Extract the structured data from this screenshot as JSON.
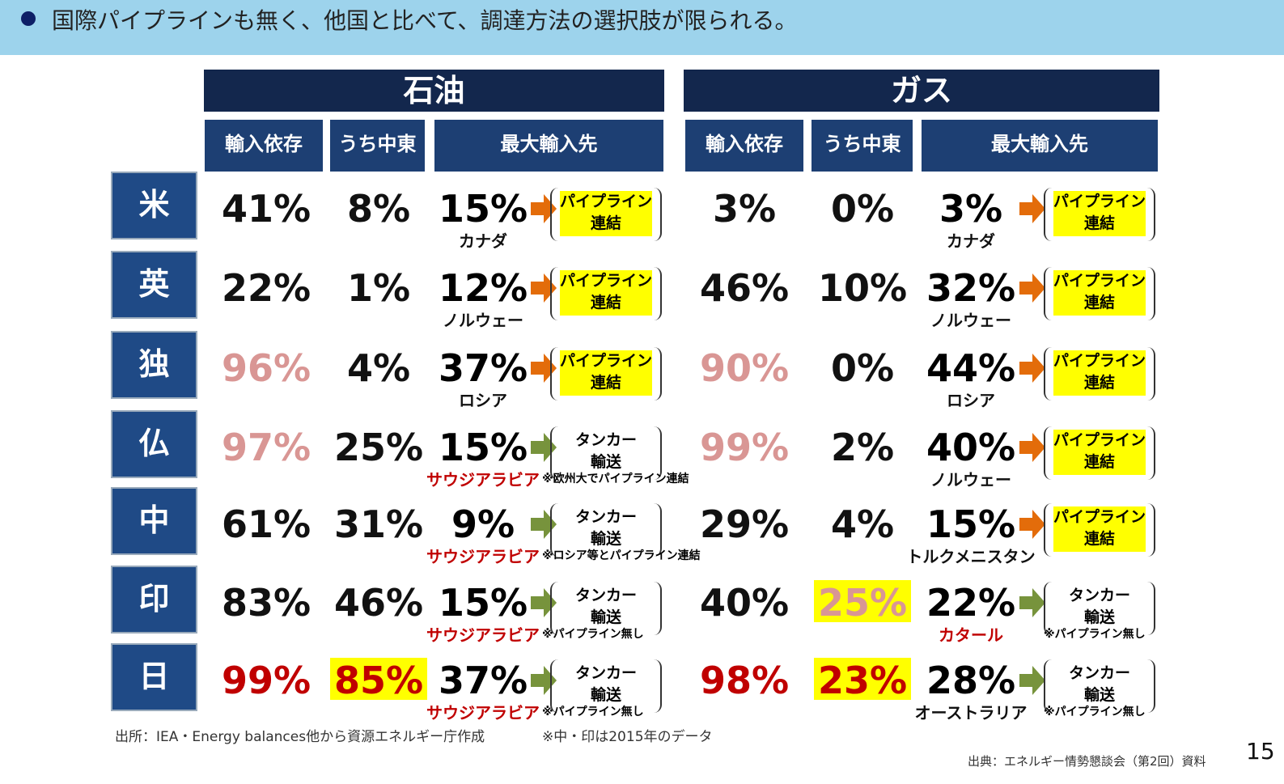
{
  "banner": {
    "text": "国際パイプラインも無く、他国と比べて、調達方法の選択肢が限られる。"
  },
  "headers": {
    "oil": "石油",
    "gas": "ガス",
    "dependence": "輸入依存",
    "middle_east": "うち中東",
    "max_source": "最大輸入先"
  },
  "route_labels": {
    "pipeline": [
      "パイプライン",
      "連結"
    ],
    "tanker": [
      "タンカー",
      "輸送"
    ]
  },
  "colors": {
    "red": "#c00000",
    "pink": "#d99694",
    "black": "#111111",
    "highlight": "#ffff00",
    "pipeline_arrow": "#e36c0a",
    "tanker_arrow": "#77933c"
  },
  "rows": [
    {
      "country": "米",
      "oil": {
        "dep": "41%",
        "dep_color": "black",
        "me": "8%",
        "max": "15%",
        "src": "カナダ",
        "src_color": "black",
        "route": "pipeline"
      },
      "gas": {
        "dep": "3%",
        "dep_color": "black",
        "me": "0%",
        "max": "3%",
        "src": "カナダ",
        "src_color": "black",
        "route": "pipeline"
      }
    },
    {
      "country": "英",
      "oil": {
        "dep": "22%",
        "dep_color": "black",
        "me": "1%",
        "max": "12%",
        "src": "ノルウェー",
        "src_color": "black",
        "route": "pipeline"
      },
      "gas": {
        "dep": "46%",
        "dep_color": "black",
        "me": "10%",
        "max": "32%",
        "src": "ノルウェー",
        "src_color": "black",
        "route": "pipeline"
      }
    },
    {
      "country": "独",
      "oil": {
        "dep": "96%",
        "dep_color": "pink",
        "me": "4%",
        "max": "37%",
        "src": "ロシア",
        "src_color": "black",
        "route": "pipeline"
      },
      "gas": {
        "dep": "90%",
        "dep_color": "pink",
        "me": "0%",
        "max": "44%",
        "src": "ロシア",
        "src_color": "black",
        "route": "pipeline"
      }
    },
    {
      "country": "仏",
      "oil": {
        "dep": "97%",
        "dep_color": "pink",
        "me": "25%",
        "max": "15%",
        "src": "サウジアラビア",
        "src_color": "red",
        "route": "tanker",
        "note": "※欧州大でパイプライン連結"
      },
      "gas": {
        "dep": "99%",
        "dep_color": "pink",
        "me": "2%",
        "max": "40%",
        "src": "ノルウェー",
        "src_color": "black",
        "route": "pipeline"
      }
    },
    {
      "country": "中",
      "oil": {
        "dep": "61%",
        "dep_color": "black",
        "me": "31%",
        "max": "9%",
        "src": "サウジアラビア",
        "src_color": "red",
        "route": "tanker",
        "note": "※ロシア等とパイプライン連結"
      },
      "gas": {
        "dep": "29%",
        "dep_color": "black",
        "me": "4%",
        "max": "15%",
        "src": "トルクメニスタン",
        "src_color": "black",
        "route": "pipeline"
      }
    },
    {
      "country": "印",
      "oil": {
        "dep": "83%",
        "dep_color": "black",
        "me": "46%",
        "max": "15%",
        "src": "サウジアラビア",
        "src_color": "red",
        "route": "tanker",
        "note": "※パイプライン無し"
      },
      "gas": {
        "dep": "40%",
        "dep_color": "black",
        "me": "25%",
        "me_color": "pink",
        "me_highlight": true,
        "max": "22%",
        "src": "カタール",
        "src_color": "red",
        "route": "tanker",
        "note": "※パイプライン無し"
      }
    },
    {
      "country": "日",
      "oil": {
        "dep": "99%",
        "dep_color": "red",
        "me": "85%",
        "me_color": "red",
        "me_highlight": true,
        "max": "37%",
        "src": "サウジアラビア",
        "src_color": "red",
        "route": "tanker",
        "note": "※パイプライン無し"
      },
      "gas": {
        "dep": "98%",
        "dep_color": "red",
        "me": "23%",
        "me_color": "red",
        "me_highlight": true,
        "max": "28%",
        "src": "オーストラリア",
        "src_color": "black",
        "route": "tanker",
        "note": "※パイプライン無し"
      }
    }
  ],
  "footer": {
    "source": "出所：IEA・Energy balances他から資源エネルギー庁作成",
    "note": "※中・印は2015年のデータ",
    "citation": "出典：エネルギー情勢懇談会（第2回）資料",
    "page": "15"
  }
}
